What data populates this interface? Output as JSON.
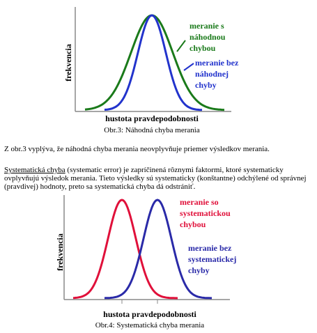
{
  "figure1": {
    "y_label": "frekvencia",
    "x_label": "hustota pravdepodobnosti",
    "curve_labels": [
      [
        "meranie s",
        "náhodnou",
        "chybou"
      ],
      [
        "meranie bez",
        "náhodnej",
        "chyby"
      ]
    ],
    "caption": "Obr.3: Náhodná chyba merania"
  },
  "paragraph1": "Z obr.3 vyplýva, že náhodná chyba merania neovplyvňuje priemer výsledkov merania.",
  "paragraph2": {
    "term": "Systematická chyba",
    "text": " (systematic error) je zapríčinená rôznymi faktormi, ktoré systematicky ovplyvňujú výsledok merania. Tieto výsledky sú systematicky (konštantne) odchýlené od správnej (pravdivej) hodnoty, preto sa systematická chyba dá odstrániť."
  },
  "figure2": {
    "y_label": "frekvencia",
    "x_label": "hustota pravdepodobnosti",
    "curve_labels": [
      [
        "meranie so",
        "systematickou",
        "chybou"
      ],
      [
        "meranie bez",
        "systematickej",
        "chyby"
      ]
    ],
    "caption": "Obr.4: Systematická chyba merania"
  }
}
